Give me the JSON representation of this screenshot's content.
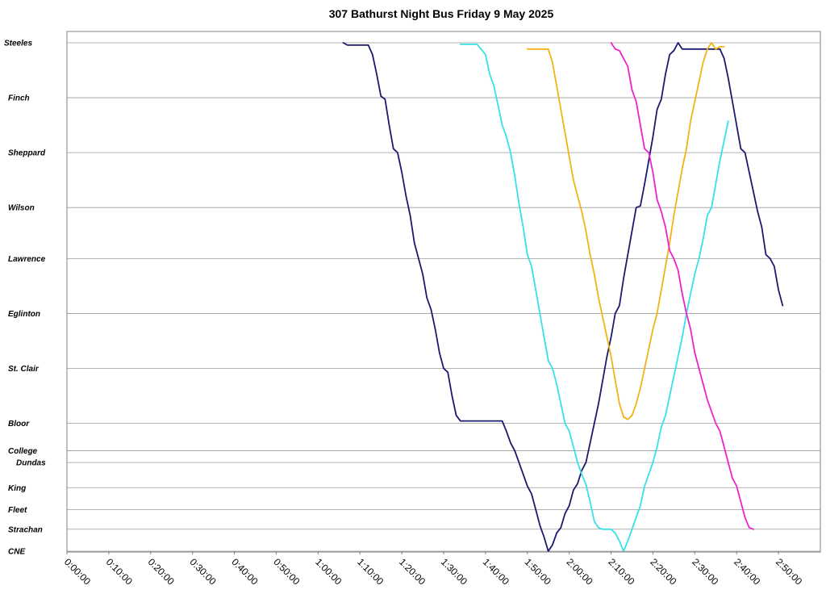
{
  "chart_data": {
    "type": "line",
    "title": "307 Bathurst Night Bus Friday 9 May 2025",
    "xlabel": "",
    "ylabel": "",
    "xlim": [
      "0:00:00",
      "3:00:00"
    ],
    "grid": true,
    "stops": [
      {
        "name": "Steeles",
        "pos": 0
      },
      {
        "name": "Finch",
        "pos": 7
      },
      {
        "name": "Sheppard",
        "pos": 14
      },
      {
        "name": "Wilson",
        "pos": 21
      },
      {
        "name": "Lawrence",
        "pos": 27.5
      },
      {
        "name": "Eglinton",
        "pos": 34.5
      },
      {
        "name": "St. Clair",
        "pos": 41.5
      },
      {
        "name": "Bloor",
        "pos": 48.5
      },
      {
        "name": "College",
        "pos": 52
      },
      {
        "name": "Dundas",
        "pos": 53.5
      },
      {
        "name": "King",
        "pos": 56.7
      },
      {
        "name": "Fleet",
        "pos": 59.5
      },
      {
        "name": "Strachan",
        "pos": 62
      },
      {
        "name": "CNE",
        "pos": 64.8
      }
    ],
    "x_ticks": [
      "0:00:00",
      "0:10:00",
      "0:20:00",
      "0:30:00",
      "0:40:00",
      "0:50:00",
      "1:00:00",
      "1:10:00",
      "1:20:00",
      "1:30:00",
      "1:40:00",
      "1:50:00",
      "2:00:00",
      "2:10:00",
      "2:20:00",
      "2:30:00",
      "2:40:00",
      "2:50:00"
    ],
    "series": [
      {
        "color": "#1a1a6e",
        "points": [
          [
            "1:06:00",
            0.0
          ],
          [
            "1:07:00",
            0.3
          ],
          [
            "1:12:00",
            0.3
          ],
          [
            "1:13:00",
            1.5
          ],
          [
            "1:14:00",
            4
          ],
          [
            "1:15:00",
            6.8
          ],
          [
            "1:16:00",
            7.2
          ],
          [
            "1:17:00",
            10.5
          ],
          [
            "1:18:00",
            13.5
          ],
          [
            "1:19:00",
            14.0
          ],
          [
            "1:20:00",
            16.5
          ],
          [
            "1:21:00",
            19.5
          ],
          [
            "1:22:00",
            22.0
          ],
          [
            "1:23:00",
            25.5
          ],
          [
            "1:24:00",
            27.5
          ],
          [
            "1:25:00",
            29.5
          ],
          [
            "1:26:00",
            32.5
          ],
          [
            "1:27:00",
            34.0
          ],
          [
            "1:28:00",
            36.5
          ],
          [
            "1:29:00",
            39.5
          ],
          [
            "1:30:00",
            41.5
          ],
          [
            "1:31:00",
            42.0
          ],
          [
            "1:32:00",
            45.0
          ],
          [
            "1:33:00",
            47.5
          ],
          [
            "1:34:00",
            48.2
          ],
          [
            "1:44:00",
            48.2
          ],
          [
            "1:45:00",
            49.5
          ],
          [
            "1:46:00",
            51.0
          ],
          [
            "1:47:00",
            52.0
          ],
          [
            "1:48:00",
            53.5
          ],
          [
            "1:49:00",
            55.0
          ],
          [
            "1:50:00",
            56.5
          ],
          [
            "1:51:00",
            57.5
          ],
          [
            "1:52:00",
            59.5
          ],
          [
            "1:53:00",
            61.5
          ],
          [
            "1:54:00",
            63.0
          ],
          [
            "1:55:00",
            64.8
          ],
          [
            "1:56:00",
            64.0
          ],
          [
            "1:57:00",
            62.5
          ],
          [
            "1:58:00",
            61.8
          ],
          [
            "1:59:00",
            60.0
          ],
          [
            "2:00:00",
            59.0
          ],
          [
            "2:01:00",
            57.0
          ],
          [
            "2:02:00",
            56.2
          ],
          [
            "2:03:00",
            54.5
          ],
          [
            "2:04:00",
            53.5
          ],
          [
            "2:05:00",
            51.0
          ],
          [
            "2:06:00",
            48.5
          ],
          [
            "2:07:00",
            46.0
          ],
          [
            "2:08:00",
            43.0
          ],
          [
            "2:09:00",
            40.0
          ],
          [
            "2:10:00",
            37.5
          ],
          [
            "2:11:00",
            34.5
          ],
          [
            "2:12:00",
            33.5
          ],
          [
            "2:13:00",
            30.0
          ],
          [
            "2:14:00",
            27.0
          ],
          [
            "2:15:00",
            24.0
          ],
          [
            "2:16:00",
            21.0
          ],
          [
            "2:17:00",
            20.8
          ],
          [
            "2:18:00",
            18.0
          ],
          [
            "2:19:00",
            15.0
          ],
          [
            "2:20:00",
            12.0
          ],
          [
            "2:21:00",
            8.5
          ],
          [
            "2:22:00",
            7.2
          ],
          [
            "2:23:00",
            4.0
          ],
          [
            "2:24:00",
            1.5
          ],
          [
            "2:25:00",
            1.0
          ],
          [
            "2:26:00",
            0.0
          ],
          [
            "2:27:00",
            0.8
          ],
          [
            "2:36:00",
            0.8
          ],
          [
            "2:37:00",
            2.0
          ],
          [
            "2:38:00",
            4.5
          ],
          [
            "2:39:00",
            7.5
          ],
          [
            "2:40:00",
            10.5
          ],
          [
            "2:41:00",
            13.5
          ],
          [
            "2:42:00",
            14.0
          ],
          [
            "2:43:00",
            16.5
          ],
          [
            "2:44:00",
            19.0
          ],
          [
            "2:45:00",
            21.5
          ],
          [
            "2:46:00",
            23.5
          ],
          [
            "2:47:00",
            27.0
          ],
          [
            "2:48:00",
            27.5
          ],
          [
            "2:49:00",
            28.5
          ],
          [
            "2:50:00",
            31.5
          ],
          [
            "2:51:00",
            33.5
          ]
        ]
      },
      {
        "color": "#38e0e8",
        "points": [
          [
            "1:34:00",
            0.2
          ],
          [
            "1:38:00",
            0.2
          ],
          [
            "1:40:00",
            1.5
          ],
          [
            "1:41:00",
            4.0
          ],
          [
            "1:42:00",
            5.5
          ],
          [
            "1:43:00",
            8.0
          ],
          [
            "1:44:00",
            10.5
          ],
          [
            "1:45:00",
            12.0
          ],
          [
            "1:46:00",
            14.0
          ],
          [
            "1:47:00",
            17.0
          ],
          [
            "1:48:00",
            20.5
          ],
          [
            "1:49:00",
            23.5
          ],
          [
            "1:50:00",
            27.0
          ],
          [
            "1:51:00",
            28.5
          ],
          [
            "1:52:00",
            31.5
          ],
          [
            "1:53:00",
            34.5
          ],
          [
            "1:54:00",
            37.5
          ],
          [
            "1:55:00",
            40.5
          ],
          [
            "1:56:00",
            41.5
          ],
          [
            "1:57:00",
            43.5
          ],
          [
            "1:58:00",
            46.0
          ],
          [
            "1:59:00",
            48.5
          ],
          [
            "2:00:00",
            49.5
          ],
          [
            "2:01:00",
            51.5
          ],
          [
            "2:02:00",
            53.5
          ],
          [
            "2:03:00",
            55.0
          ],
          [
            "2:04:00",
            56.3
          ],
          [
            "2:05:00",
            58.5
          ],
          [
            "2:06:00",
            61.0
          ],
          [
            "2:07:00",
            61.8
          ],
          [
            "2:08:00",
            62.0
          ],
          [
            "2:10:00",
            62.0
          ],
          [
            "2:11:00",
            62.5
          ],
          [
            "2:12:00",
            63.5
          ],
          [
            "2:13:00",
            64.8
          ],
          [
            "2:14:00",
            63.5
          ],
          [
            "2:15:00",
            62.0
          ],
          [
            "2:16:00",
            60.5
          ],
          [
            "2:17:00",
            59.0
          ],
          [
            "2:18:00",
            56.5
          ],
          [
            "2:19:00",
            55.0
          ],
          [
            "2:20:00",
            53.5
          ],
          [
            "2:21:00",
            51.5
          ],
          [
            "2:22:00",
            49.0
          ],
          [
            "2:23:00",
            47.5
          ],
          [
            "2:24:00",
            45.0
          ],
          [
            "2:25:00",
            42.5
          ],
          [
            "2:26:00",
            40.0
          ],
          [
            "2:27:00",
            37.5
          ],
          [
            "2:28:00",
            34.5
          ],
          [
            "2:29:00",
            32.0
          ],
          [
            "2:30:00",
            29.5
          ],
          [
            "2:31:00",
            27.5
          ],
          [
            "2:32:00",
            25.0
          ],
          [
            "2:33:00",
            22.0
          ],
          [
            "2:34:00",
            21.0
          ],
          [
            "2:35:00",
            18.0
          ],
          [
            "2:36:00",
            15.0
          ],
          [
            "2:37:00",
            12.5
          ],
          [
            "2:38:00",
            10.0
          ]
        ]
      },
      {
        "color": "#f2b313",
        "points": [
          [
            "1:50:00",
            0.8
          ],
          [
            "1:55:00",
            0.8
          ],
          [
            "1:56:00",
            2.5
          ],
          [
            "1:57:00",
            5.5
          ],
          [
            "1:58:00",
            8.5
          ],
          [
            "1:59:00",
            11.5
          ],
          [
            "2:00:00",
            14.5
          ],
          [
            "2:01:00",
            17.5
          ],
          [
            "2:02:00",
            19.5
          ],
          [
            "2:03:00",
            21.5
          ],
          [
            "2:04:00",
            24.0
          ],
          [
            "2:05:00",
            27.0
          ],
          [
            "2:06:00",
            29.5
          ],
          [
            "2:07:00",
            32.5
          ],
          [
            "2:08:00",
            35.0
          ],
          [
            "2:09:00",
            37.5
          ],
          [
            "2:10:00",
            40.0
          ],
          [
            "2:11:00",
            43.0
          ],
          [
            "2:12:00",
            46.0
          ],
          [
            "2:13:00",
            47.7
          ],
          [
            "2:14:00",
            48.0
          ],
          [
            "2:15:00",
            47.5
          ],
          [
            "2:16:00",
            46.0
          ],
          [
            "2:17:00",
            44.0
          ],
          [
            "2:18:00",
            41.5
          ],
          [
            "2:19:00",
            39.0
          ],
          [
            "2:20:00",
            36.5
          ],
          [
            "2:21:00",
            34.5
          ],
          [
            "2:22:00",
            31.5
          ],
          [
            "2:23:00",
            28.5
          ],
          [
            "2:24:00",
            25.5
          ],
          [
            "2:25:00",
            22.0
          ],
          [
            "2:26:00",
            19.0
          ],
          [
            "2:27:00",
            16.0
          ],
          [
            "2:28:00",
            13.5
          ],
          [
            "2:29:00",
            10.0
          ],
          [
            "2:30:00",
            7.5
          ],
          [
            "2:31:00",
            5.0
          ],
          [
            "2:32:00",
            2.5
          ],
          [
            "2:33:00",
            0.8
          ],
          [
            "2:34:00",
            0.0
          ],
          [
            "2:35:00",
            0.8
          ],
          [
            "2:36:00",
            0.5
          ],
          [
            "2:37:00",
            0.5
          ]
        ]
      },
      {
        "color": "#ee22cc",
        "points": [
          [
            "2:10:00",
            0.0
          ],
          [
            "2:11:00",
            0.8
          ],
          [
            "2:12:00",
            1.0
          ],
          [
            "2:13:00",
            2.0
          ],
          [
            "2:14:00",
            3.0
          ],
          [
            "2:15:00",
            6.0
          ],
          [
            "2:16:00",
            7.5
          ],
          [
            "2:17:00",
            10.5
          ],
          [
            "2:18:00",
            13.5
          ],
          [
            "2:19:00",
            14.0
          ],
          [
            "2:20:00",
            16.5
          ],
          [
            "2:21:00",
            20.0
          ],
          [
            "2:22:00",
            21.5
          ],
          [
            "2:23:00",
            23.5
          ],
          [
            "2:24:00",
            26.5
          ],
          [
            "2:25:00",
            27.5
          ],
          [
            "2:26:00",
            29.0
          ],
          [
            "2:27:00",
            32.0
          ],
          [
            "2:28:00",
            34.5
          ],
          [
            "2:29:00",
            36.5
          ],
          [
            "2:30:00",
            39.5
          ],
          [
            "2:31:00",
            41.5
          ],
          [
            "2:32:00",
            43.5
          ],
          [
            "2:33:00",
            45.5
          ],
          [
            "2:34:00",
            47.0
          ],
          [
            "2:35:00",
            48.5
          ],
          [
            "2:36:00",
            49.5
          ],
          [
            "2:37:00",
            51.5
          ],
          [
            "2:38:00",
            53.5
          ],
          [
            "2:39:00",
            55.5
          ],
          [
            "2:40:00",
            56.5
          ],
          [
            "2:41:00",
            58.5
          ],
          [
            "2:42:00",
            60.5
          ],
          [
            "2:43:00",
            61.8
          ],
          [
            "2:44:00",
            62.0
          ]
        ]
      }
    ]
  }
}
